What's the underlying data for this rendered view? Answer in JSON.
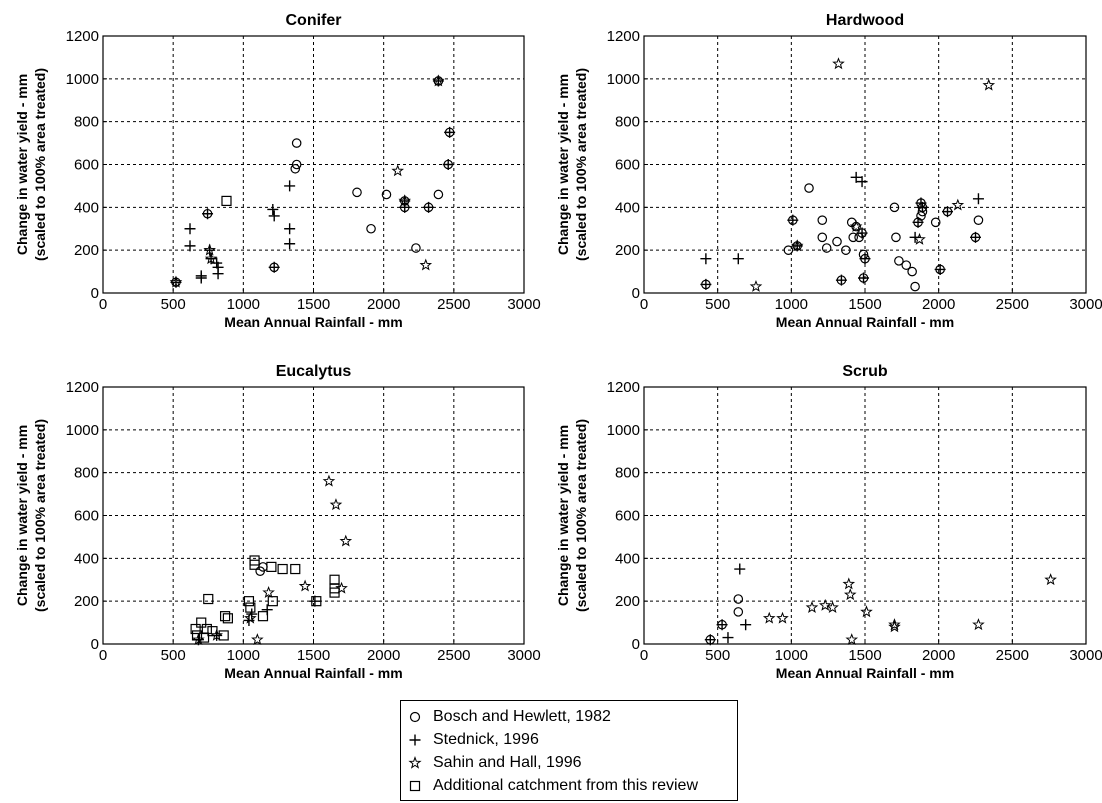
{
  "chart_data": [
    {
      "type": "scatter",
      "title": "Conifer",
      "xlabel": "Mean Annual Rainfall - mm",
      "ylabel_line1": "Change in water yield - mm",
      "ylabel_line2": "(scaled to 100%  area treated)",
      "xlim": [
        0,
        3000
      ],
      "ylim": [
        0,
        1200
      ],
      "xticks": [
        0,
        500,
        1000,
        1500,
        2000,
        2500,
        3000
      ],
      "yticks": [
        0,
        200,
        400,
        600,
        800,
        1000,
        1200
      ],
      "grid": true,
      "series": [
        {
          "name": "Bosch and Hewlett, 1982",
          "marker": "circle",
          "points": [
            [
              520,
              50
            ],
            [
              745,
              370
            ],
            [
              1220,
              120
            ],
            [
              1380,
              700
            ],
            [
              1370,
              580
            ],
            [
              1380,
              600
            ],
            [
              1810,
              470
            ],
            [
              1910,
              300
            ],
            [
              2020,
              460
            ],
            [
              2150,
              430
            ],
            [
              2150,
              400
            ],
            [
              2230,
              210
            ],
            [
              2320,
              400
            ],
            [
              2390,
              990
            ],
            [
              2390,
              460
            ],
            [
              2470,
              750
            ],
            [
              2460,
              600
            ]
          ]
        },
        {
          "name": "Stednick, 1996",
          "marker": "plus",
          "points": [
            [
              520,
              50
            ],
            [
              620,
              300
            ],
            [
              620,
              220
            ],
            [
              700,
              80
            ],
            [
              700,
              70
            ],
            [
              745,
              370
            ],
            [
              760,
              200
            ],
            [
              770,
              160
            ],
            [
              810,
              140
            ],
            [
              820,
              120
            ],
            [
              820,
              90
            ],
            [
              1210,
              390
            ],
            [
              1220,
              360
            ],
            [
              1220,
              120
            ],
            [
              1330,
              500
            ],
            [
              1330,
              300
            ],
            [
              1330,
              230
            ],
            [
              2150,
              430
            ],
            [
              2150,
              400
            ],
            [
              2320,
              400
            ],
            [
              2390,
              990
            ],
            [
              2470,
              750
            ],
            [
              2460,
              600
            ]
          ]
        },
        {
          "name": "Sahin and Hall, 1996",
          "marker": "star",
          "points": [
            [
              520,
              50
            ],
            [
              760,
              200
            ],
            [
              770,
              160
            ],
            [
              2100,
              570
            ],
            [
              2150,
              430
            ],
            [
              2300,
              130
            ],
            [
              2390,
              990
            ]
          ]
        },
        {
          "name": "Additional catchment from this review",
          "marker": "square",
          "points": [
            [
              880,
              430
            ]
          ]
        }
      ]
    },
    {
      "type": "scatter",
      "title": "Hardwood",
      "xlabel": "Mean Annual Rainfall - mm",
      "ylabel_line1": "Change in water yield - mm",
      "ylabel_line2": "(scaled to 100%  area treated)",
      "xlim": [
        0,
        3000
      ],
      "ylim": [
        0,
        1200
      ],
      "xticks": [
        0,
        500,
        1000,
        1500,
        2000,
        2500,
        3000
      ],
      "yticks": [
        0,
        200,
        400,
        600,
        800,
        1000,
        1200
      ],
      "grid": true,
      "series": [
        {
          "name": "Bosch and Hewlett, 1982",
          "marker": "circle",
          "points": [
            [
              420,
              40
            ],
            [
              980,
              200
            ],
            [
              1010,
              340
            ],
            [
              1040,
              220
            ],
            [
              1120,
              490
            ],
            [
              1210,
              340
            ],
            [
              1210,
              260
            ],
            [
              1240,
              210
            ],
            [
              1310,
              240
            ],
            [
              1340,
              60
            ],
            [
              1370,
              200
            ],
            [
              1410,
              330
            ],
            [
              1420,
              260
            ],
            [
              1440,
              310
            ],
            [
              1460,
              260
            ],
            [
              1480,
              280
            ],
            [
              1490,
              180
            ],
            [
              1500,
              160
            ],
            [
              1490,
              70
            ],
            [
              1700,
              400
            ],
            [
              1710,
              260
            ],
            [
              1730,
              150
            ],
            [
              1780,
              130
            ],
            [
              1820,
              100
            ],
            [
              1840,
              30
            ],
            [
              1860,
              330
            ],
            [
              1880,
              420
            ],
            [
              1890,
              400
            ],
            [
              1890,
              380
            ],
            [
              1880,
              360
            ],
            [
              1980,
              330
            ],
            [
              2010,
              110
            ],
            [
              2060,
              380
            ],
            [
              2250,
              260
            ],
            [
              2270,
              340
            ]
          ]
        },
        {
          "name": "Stednick, 1996",
          "marker": "plus",
          "points": [
            [
              420,
              40
            ],
            [
              420,
              160
            ],
            [
              640,
              160
            ],
            [
              1010,
              340
            ],
            [
              1040,
              220
            ],
            [
              1340,
              60
            ],
            [
              1440,
              540
            ],
            [
              1480,
              520
            ],
            [
              1480,
              280
            ],
            [
              1500,
              160
            ],
            [
              1490,
              70
            ],
            [
              1840,
              260
            ],
            [
              1860,
              330
            ],
            [
              1880,
              420
            ],
            [
              1890,
              400
            ],
            [
              2010,
              110
            ],
            [
              2060,
              380
            ],
            [
              2250,
              260
            ],
            [
              2270,
              440
            ]
          ]
        },
        {
          "name": "Sahin and Hall, 1996",
          "marker": "star",
          "points": [
            [
              760,
              30
            ],
            [
              1040,
              220
            ],
            [
              1320,
              1070
            ],
            [
              1440,
              310
            ],
            [
              1870,
              250
            ],
            [
              2130,
              410
            ],
            [
              2340,
              970
            ]
          ]
        },
        {
          "name": "Additional catchment from this review",
          "marker": "square",
          "points": []
        }
      ]
    },
    {
      "type": "scatter",
      "title": "Eucalytus",
      "xlabel": "Mean Annual Rainfall - mm",
      "ylabel_line1": "Change in water yield - mm",
      "ylabel_line2": "(scaled to 100%  area treated)",
      "xlim": [
        0,
        3000
      ],
      "ylim": [
        0,
        1200
      ],
      "xticks": [
        0,
        500,
        1000,
        1500,
        2000,
        2500,
        3000
      ],
      "yticks": [
        0,
        200,
        400,
        600,
        800,
        1000,
        1200
      ],
      "grid": true,
      "series": [
        {
          "name": "Bosch and Hewlett, 1982",
          "marker": "circle",
          "points": [
            [
              1120,
              340
            ],
            [
              1140,
              360
            ]
          ]
        },
        {
          "name": "Stednick, 1996",
          "marker": "plus",
          "points": [
            [
              680,
              20
            ],
            [
              810,
              40
            ],
            [
              1040,
              110
            ],
            [
              1060,
              140
            ],
            [
              1170,
              160
            ],
            [
              1510,
              200
            ]
          ]
        },
        {
          "name": "Sahin and Hall, 1996",
          "marker": "star",
          "points": [
            [
              680,
              20
            ],
            [
              810,
              40
            ],
            [
              1050,
              120
            ],
            [
              1100,
              20
            ],
            [
              1180,
              240
            ],
            [
              1440,
              270
            ],
            [
              1610,
              760
            ],
            [
              1660,
              650
            ],
            [
              1700,
              260
            ],
            [
              1730,
              480
            ]
          ]
        },
        {
          "name": "Additional catchment from this review",
          "marker": "square",
          "points": [
            [
              660,
              70
            ],
            [
              670,
              40
            ],
            [
              700,
              100
            ],
            [
              720,
              30
            ],
            [
              740,
              70
            ],
            [
              750,
              210
            ],
            [
              780,
              60
            ],
            [
              870,
              130
            ],
            [
              890,
              120
            ],
            [
              860,
              40
            ],
            [
              1040,
              200
            ],
            [
              1050,
              170
            ],
            [
              1080,
              390
            ],
            [
              1080,
              370
            ],
            [
              1140,
              130
            ],
            [
              1200,
              360
            ],
            [
              1210,
              200
            ],
            [
              1280,
              350
            ],
            [
              1370,
              350
            ],
            [
              1520,
              200
            ],
            [
              1650,
              300
            ],
            [
              1650,
              260
            ],
            [
              1650,
              240
            ]
          ]
        }
      ]
    },
    {
      "type": "scatter",
      "title": "Scrub",
      "xlabel": "Mean Annual Rainfall - mm",
      "ylabel_line1": "Change in water yield - mm",
      "ylabel_line2": "(scaled to 100%  area treated)",
      "xlim": [
        0,
        3000
      ],
      "ylim": [
        0,
        1200
      ],
      "xticks": [
        0,
        500,
        1000,
        1500,
        2000,
        2500,
        3000
      ],
      "yticks": [
        0,
        200,
        400,
        600,
        800,
        1000,
        1200
      ],
      "grid": true,
      "series": [
        {
          "name": "Bosch and Hewlett, 1982",
          "marker": "circle",
          "points": [
            [
              450,
              20
            ],
            [
              530,
              90
            ],
            [
              640,
              210
            ],
            [
              640,
              150
            ]
          ]
        },
        {
          "name": "Stednick, 1996",
          "marker": "plus",
          "points": [
            [
              450,
              20
            ],
            [
              530,
              90
            ],
            [
              570,
              30
            ],
            [
              650,
              350
            ],
            [
              690,
              90
            ]
          ]
        },
        {
          "name": "Sahin and Hall, 1996",
          "marker": "star",
          "points": [
            [
              850,
              120
            ],
            [
              940,
              120
            ],
            [
              1140,
              170
            ],
            [
              1230,
              180
            ],
            [
              1280,
              170
            ],
            [
              1390,
              280
            ],
            [
              1400,
              230
            ],
            [
              1410,
              20
            ],
            [
              1510,
              150
            ],
            [
              1700,
              90
            ],
            [
              1700,
              80
            ],
            [
              2270,
              90
            ],
            [
              2760,
              300
            ]
          ]
        },
        {
          "name": "Additional catchment from this review",
          "marker": "square",
          "points": []
        }
      ]
    }
  ],
  "legend": {
    "items": [
      {
        "label": "Bosch and Hewlett, 1982",
        "marker": "circle"
      },
      {
        "label": "Stednick, 1996",
        "marker": "plus"
      },
      {
        "label": "Sahin and Hall, 1996",
        "marker": "star"
      },
      {
        "label": "Additional catchment from this review",
        "marker": "square"
      }
    ]
  }
}
